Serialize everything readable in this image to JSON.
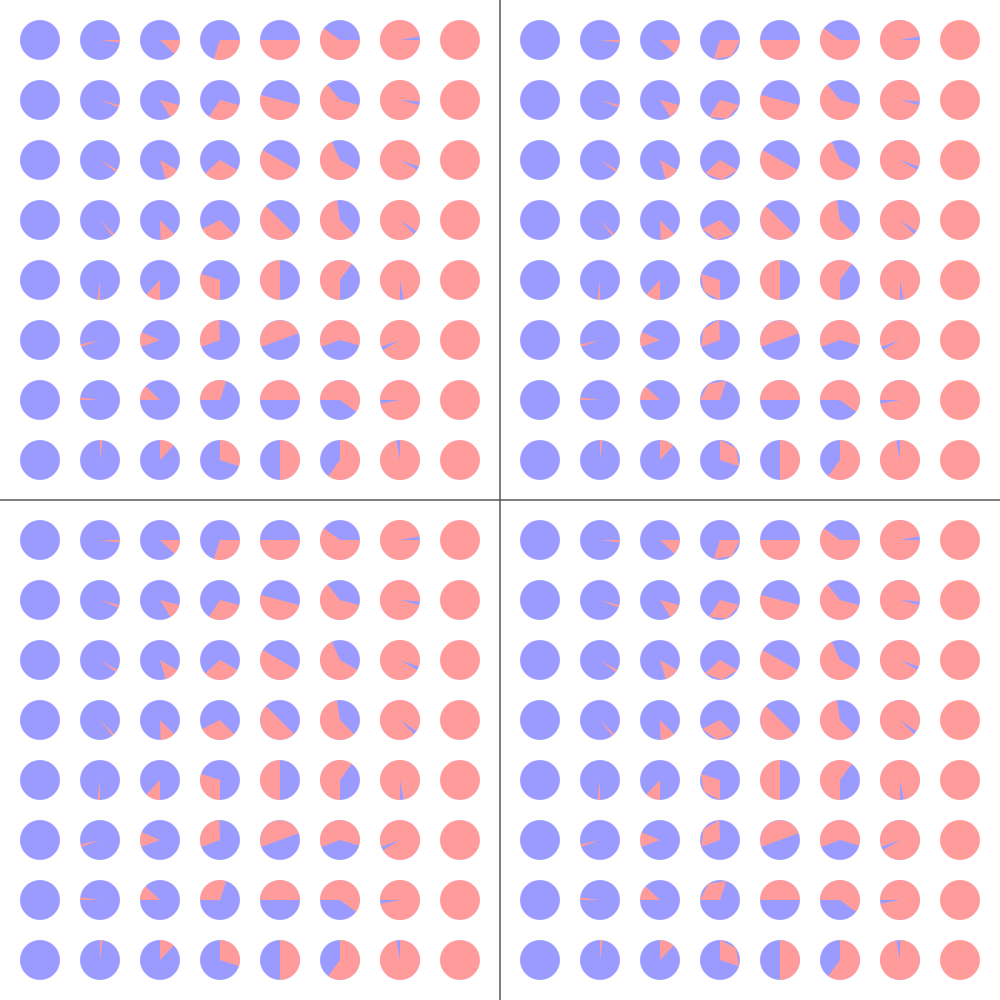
{
  "colors": {
    "background": "#ffffff",
    "blue": "#9b9bff",
    "red": "#ff9b9b",
    "divider": "#555555"
  },
  "grid": {
    "rows": 8,
    "cols": 8
  },
  "panels": [
    {
      "id": "top-left",
      "style": "smooth-wedge",
      "notes": ""
    },
    {
      "id": "top-right",
      "style": "polygon-wedge",
      "notes": ""
    },
    {
      "id": "bottom-left",
      "style": "smooth-wedge",
      "notes": ""
    },
    {
      "id": "bottom-right",
      "style": "polygon-wedge",
      "notes": ""
    }
  ]
}
